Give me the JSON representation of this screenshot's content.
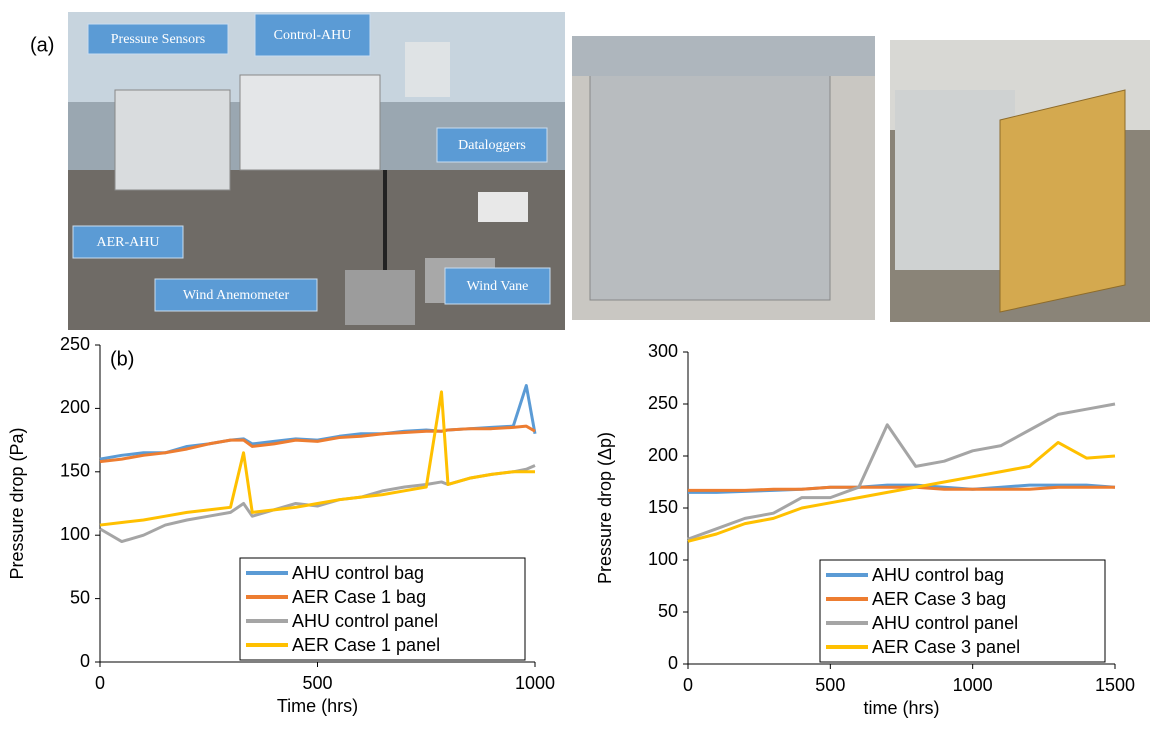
{
  "panel_label": "(a)",
  "photo_labels": [
    "Pressure Sensors",
    "Control-AHU",
    "Dataloggers",
    "AER-AHU",
    "Wind Anemometer",
    "Wind Vane"
  ],
  "chart_data": [
    {
      "type": "line",
      "annotation": "(b)",
      "x_label": "Time (hrs)",
      "y_label": "Pressure drop (Pa)",
      "x": [
        0,
        50,
        100,
        150,
        200,
        250,
        300,
        330,
        350,
        400,
        450,
        500,
        550,
        600,
        650,
        700,
        750,
        785,
        800,
        850,
        900,
        950,
        980,
        1000
      ],
      "series": [
        {
          "name": "AHU control bag",
          "color": "#5b9bd5",
          "values": [
            160,
            163,
            165,
            165,
            170,
            172,
            175,
            176,
            172,
            174,
            176,
            175,
            178,
            180,
            180,
            182,
            183,
            182,
            183,
            184,
            185,
            186,
            218,
            180
          ]
        },
        {
          "name": "AER Case 1 bag",
          "color": "#ed7d31",
          "values": [
            158,
            160,
            163,
            165,
            168,
            172,
            175,
            175,
            170,
            172,
            175,
            174,
            177,
            178,
            180,
            181,
            182,
            182,
            183,
            184,
            184,
            185,
            186,
            182
          ]
        },
        {
          "name": "AHU control panel",
          "color": "#a5a5a5",
          "values": [
            105,
            95,
            100,
            108,
            112,
            115,
            118,
            125,
            115,
            120,
            125,
            123,
            128,
            130,
            135,
            138,
            140,
            142,
            140,
            145,
            148,
            150,
            152,
            155
          ]
        },
        {
          "name": "AER Case 1 panel",
          "color": "#ffc000",
          "values": [
            108,
            110,
            112,
            115,
            118,
            120,
            122,
            165,
            118,
            120,
            122,
            125,
            128,
            130,
            132,
            135,
            138,
            213,
            140,
            145,
            148,
            150,
            150,
            150
          ]
        }
      ],
      "xlim": [
        0,
        1000
      ],
      "xticks": [
        0,
        500,
        1000
      ],
      "ylim": [
        0,
        250
      ],
      "yticks": [
        0,
        50,
        100,
        150,
        200,
        250
      ],
      "legend": "lower right"
    },
    {
      "type": "line",
      "x_label": "time (hrs)",
      "y_label": "Pressure drop (Δp)",
      "x": [
        0,
        100,
        200,
        300,
        400,
        500,
        600,
        700,
        800,
        900,
        1000,
        1100,
        1200,
        1300,
        1400,
        1500
      ],
      "series": [
        {
          "name": "AHU control bag",
          "color": "#5b9bd5",
          "values": [
            165,
            165,
            166,
            167,
            168,
            170,
            170,
            172,
            172,
            170,
            168,
            170,
            172,
            172,
            172,
            170
          ]
        },
        {
          "name": "AER Case 3 bag",
          "color": "#ed7d31",
          "values": [
            167,
            167,
            167,
            168,
            168,
            170,
            170,
            170,
            170,
            168,
            168,
            168,
            168,
            170,
            170,
            170
          ]
        },
        {
          "name": "AHU control panel",
          "color": "#a5a5a5",
          "values": [
            120,
            130,
            140,
            145,
            160,
            160,
            170,
            230,
            190,
            195,
            205,
            210,
            225,
            240,
            245,
            250
          ]
        },
        {
          "name": "AER Case 3 panel",
          "color": "#ffc000",
          "values": [
            118,
            125,
            135,
            140,
            150,
            155,
            160,
            165,
            170,
            175,
            180,
            185,
            190,
            213,
            198,
            200
          ]
        }
      ],
      "xlim": [
        0,
        1500
      ],
      "xticks": [
        0,
        500,
        1000,
        1500
      ],
      "ylim": [
        0,
        300
      ],
      "yticks": [
        0,
        50,
        100,
        150,
        200,
        250,
        300
      ],
      "legend": "lower right"
    }
  ]
}
